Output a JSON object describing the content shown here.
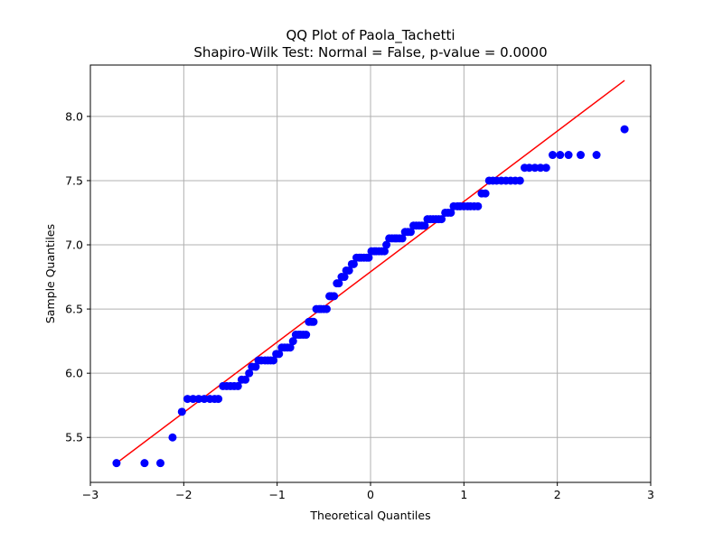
{
  "chart_data": {
    "type": "scatter",
    "title": "QQ Plot of Paola_Tachetti",
    "subtitle": "Shapiro-Wilk Test: Normal = False, p-value = 0.0000",
    "xlabel": "Theoretical Quantiles",
    "ylabel": "Sample Quantiles",
    "xlim": [
      -3.0,
      3.0
    ],
    "ylim": [
      5.15,
      8.4
    ],
    "xticks": [
      -3,
      -2,
      -1,
      0,
      1,
      2,
      3
    ],
    "xtick_labels": [
      "−3",
      "−2",
      "−1",
      "0",
      "1",
      "2",
      "3"
    ],
    "yticks": [
      5.5,
      6.0,
      6.5,
      7.0,
      7.5,
      8.0
    ],
    "ytick_labels": [
      "5.5",
      "6.0",
      "6.5",
      "7.0",
      "7.5",
      "8.0"
    ],
    "grid": true,
    "point_color": "#0000ff",
    "line_color": "#ff0000",
    "series": [
      {
        "kind": "points",
        "points": [
          [
            -2.72,
            5.3
          ],
          [
            -2.42,
            5.3
          ],
          [
            -2.25,
            5.3
          ],
          [
            -2.12,
            5.5
          ],
          [
            -2.02,
            5.7
          ],
          [
            -1.96,
            5.8
          ],
          [
            -1.9,
            5.8
          ],
          [
            -1.84,
            5.8
          ],
          [
            -1.78,
            5.8
          ],
          [
            -1.72,
            5.8
          ],
          [
            -1.67,
            5.8
          ],
          [
            -1.63,
            5.8
          ],
          [
            -1.58,
            5.9
          ],
          [
            -1.54,
            5.9
          ],
          [
            -1.5,
            5.9
          ],
          [
            -1.46,
            5.9
          ],
          [
            -1.42,
            5.9
          ],
          [
            -1.38,
            5.95
          ],
          [
            -1.34,
            5.95
          ],
          [
            -1.3,
            6.0
          ],
          [
            -1.27,
            6.05
          ],
          [
            -1.23,
            6.05
          ],
          [
            -1.2,
            6.1
          ],
          [
            -1.17,
            6.1
          ],
          [
            -1.13,
            6.1
          ],
          [
            -1.1,
            6.1
          ],
          [
            -1.07,
            6.1
          ],
          [
            -1.04,
            6.1
          ],
          [
            -1.01,
            6.15
          ],
          [
            -0.98,
            6.15
          ],
          [
            -0.95,
            6.2
          ],
          [
            -0.92,
            6.2
          ],
          [
            -0.89,
            6.2
          ],
          [
            -0.86,
            6.2
          ],
          [
            -0.83,
            6.25
          ],
          [
            -0.8,
            6.3
          ],
          [
            -0.77,
            6.3
          ],
          [
            -0.75,
            6.3
          ],
          [
            -0.72,
            6.3
          ],
          [
            -0.69,
            6.3
          ],
          [
            -0.66,
            6.4
          ],
          [
            -0.63,
            6.4
          ],
          [
            -0.61,
            6.4
          ],
          [
            -0.58,
            6.5
          ],
          [
            -0.55,
            6.5
          ],
          [
            -0.53,
            6.5
          ],
          [
            -0.5,
            6.5
          ],
          [
            -0.47,
            6.5
          ],
          [
            -0.44,
            6.6
          ],
          [
            -0.42,
            6.6
          ],
          [
            -0.39,
            6.6
          ],
          [
            -0.36,
            6.7
          ],
          [
            -0.34,
            6.7
          ],
          [
            -0.31,
            6.75
          ],
          [
            -0.28,
            6.75
          ],
          [
            -0.26,
            6.8
          ],
          [
            -0.23,
            6.8
          ],
          [
            -0.2,
            6.85
          ],
          [
            -0.18,
            6.85
          ],
          [
            -0.15,
            6.9
          ],
          [
            -0.12,
            6.9
          ],
          [
            -0.1,
            6.9
          ],
          [
            -0.07,
            6.9
          ],
          [
            -0.04,
            6.9
          ],
          [
            -0.02,
            6.9
          ],
          [
            0.01,
            6.95
          ],
          [
            0.04,
            6.95
          ],
          [
            0.06,
            6.95
          ],
          [
            0.09,
            6.95
          ],
          [
            0.12,
            6.95
          ],
          [
            0.15,
            6.95
          ],
          [
            0.17,
            7.0
          ],
          [
            0.2,
            7.05
          ],
          [
            0.23,
            7.05
          ],
          [
            0.26,
            7.05
          ],
          [
            0.28,
            7.05
          ],
          [
            0.31,
            7.05
          ],
          [
            0.34,
            7.05
          ],
          [
            0.37,
            7.1
          ],
          [
            0.4,
            7.1
          ],
          [
            0.43,
            7.1
          ],
          [
            0.46,
            7.15
          ],
          [
            0.49,
            7.15
          ],
          [
            0.52,
            7.15
          ],
          [
            0.55,
            7.15
          ],
          [
            0.58,
            7.15
          ],
          [
            0.61,
            7.2
          ],
          [
            0.64,
            7.2
          ],
          [
            0.67,
            7.2
          ],
          [
            0.7,
            7.2
          ],
          [
            0.73,
            7.2
          ],
          [
            0.76,
            7.2
          ],
          [
            0.8,
            7.25
          ],
          [
            0.83,
            7.25
          ],
          [
            0.86,
            7.25
          ],
          [
            0.89,
            7.3
          ],
          [
            0.93,
            7.3
          ],
          [
            0.96,
            7.3
          ],
          [
            1.0,
            7.3
          ],
          [
            1.04,
            7.3
          ],
          [
            1.07,
            7.3
          ],
          [
            1.11,
            7.3
          ],
          [
            1.15,
            7.3
          ],
          [
            1.19,
            7.4
          ],
          [
            1.23,
            7.4
          ],
          [
            1.27,
            7.5
          ],
          [
            1.31,
            7.5
          ],
          [
            1.35,
            7.5
          ],
          [
            1.4,
            7.5
          ],
          [
            1.45,
            7.5
          ],
          [
            1.5,
            7.5
          ],
          [
            1.55,
            7.5
          ],
          [
            1.6,
            7.5
          ],
          [
            1.65,
            7.6
          ],
          [
            1.7,
            7.6
          ],
          [
            1.76,
            7.6
          ],
          [
            1.82,
            7.6
          ],
          [
            1.88,
            7.6
          ],
          [
            1.95,
            7.7
          ],
          [
            2.03,
            7.7
          ],
          [
            2.12,
            7.7
          ],
          [
            2.25,
            7.7
          ],
          [
            2.42,
            7.7
          ],
          [
            2.72,
            7.9
          ]
        ]
      },
      {
        "kind": "line",
        "points": [
          [
            -2.72,
            5.3
          ],
          [
            2.72,
            8.28
          ]
        ]
      }
    ]
  }
}
